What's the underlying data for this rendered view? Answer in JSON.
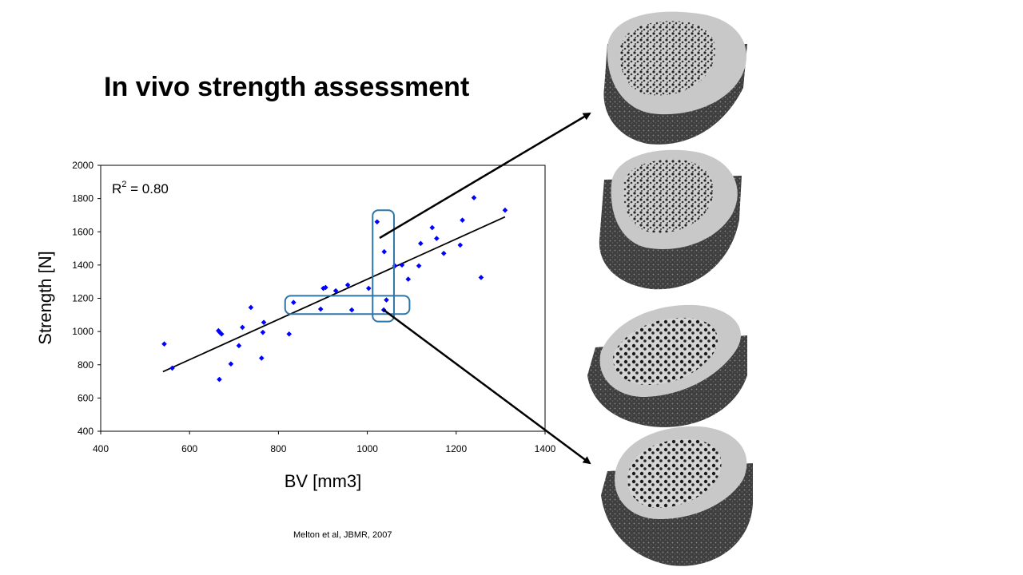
{
  "slide": {
    "title": "In vivo strength assessment",
    "citation": "Melton et al, JBMR, 2007"
  },
  "chart_data": {
    "type": "scatter",
    "xlabel": "BV [mm3]",
    "ylabel": "Strength [N]",
    "xlim": [
      400,
      1400
    ],
    "ylim": [
      400,
      2000
    ],
    "xticks": [
      400,
      600,
      800,
      1000,
      1200,
      1400
    ],
    "yticks": [
      400,
      600,
      800,
      1000,
      1200,
      1400,
      1600,
      1800,
      2000
    ],
    "annotation": {
      "r2_label": "R",
      "r2_sup": "2",
      "r2_value": " = 0.80"
    },
    "marker_color": "#0000ff",
    "trendline": {
      "x": [
        540,
        1310
      ],
      "y": [
        758,
        1690
      ]
    },
    "points": [
      {
        "x": 543,
        "y": 925
      },
      {
        "x": 561,
        "y": 780
      },
      {
        "x": 665,
        "y": 1005
      },
      {
        "x": 668,
        "y": 995
      },
      {
        "x": 672,
        "y": 985
      },
      {
        "x": 667,
        "y": 712
      },
      {
        "x": 693,
        "y": 805
      },
      {
        "x": 711,
        "y": 915
      },
      {
        "x": 719,
        "y": 1025
      },
      {
        "x": 738,
        "y": 1145
      },
      {
        "x": 762,
        "y": 840
      },
      {
        "x": 765,
        "y": 995
      },
      {
        "x": 767,
        "y": 1055
      },
      {
        "x": 824,
        "y": 985
      },
      {
        "x": 834,
        "y": 1175
      },
      {
        "x": 895,
        "y": 1135
      },
      {
        "x": 901,
        "y": 1260
      },
      {
        "x": 906,
        "y": 1265
      },
      {
        "x": 929,
        "y": 1245
      },
      {
        "x": 956,
        "y": 1280
      },
      {
        "x": 965,
        "y": 1130
      },
      {
        "x": 1003,
        "y": 1260
      },
      {
        "x": 1022,
        "y": 1660
      },
      {
        "x": 1038,
        "y": 1480
      },
      {
        "x": 1037,
        "y": 1130
      },
      {
        "x": 1043,
        "y": 1190
      },
      {
        "x": 1062,
        "y": 1395
      },
      {
        "x": 1078,
        "y": 1400
      },
      {
        "x": 1092,
        "y": 1315
      },
      {
        "x": 1116,
        "y": 1395
      },
      {
        "x": 1120,
        "y": 1530
      },
      {
        "x": 1146,
        "y": 1625
      },
      {
        "x": 1156,
        "y": 1560
      },
      {
        "x": 1172,
        "y": 1470
      },
      {
        "x": 1209,
        "y": 1520
      },
      {
        "x": 1214,
        "y": 1670
      },
      {
        "x": 1240,
        "y": 1805
      },
      {
        "x": 1256,
        "y": 1325
      },
      {
        "x": 1310,
        "y": 1730
      }
    ],
    "highlight_boxes": [
      {
        "name": "vertical-selection-box",
        "x": [
          1012,
          1060
        ],
        "y": [
          1060,
          1730
        ]
      },
      {
        "name": "horizontal-selection-box",
        "x": [
          815,
          1095
        ],
        "y": [
          1105,
          1215
        ]
      }
    ],
    "highlight_color": "#2e75a8"
  }
}
